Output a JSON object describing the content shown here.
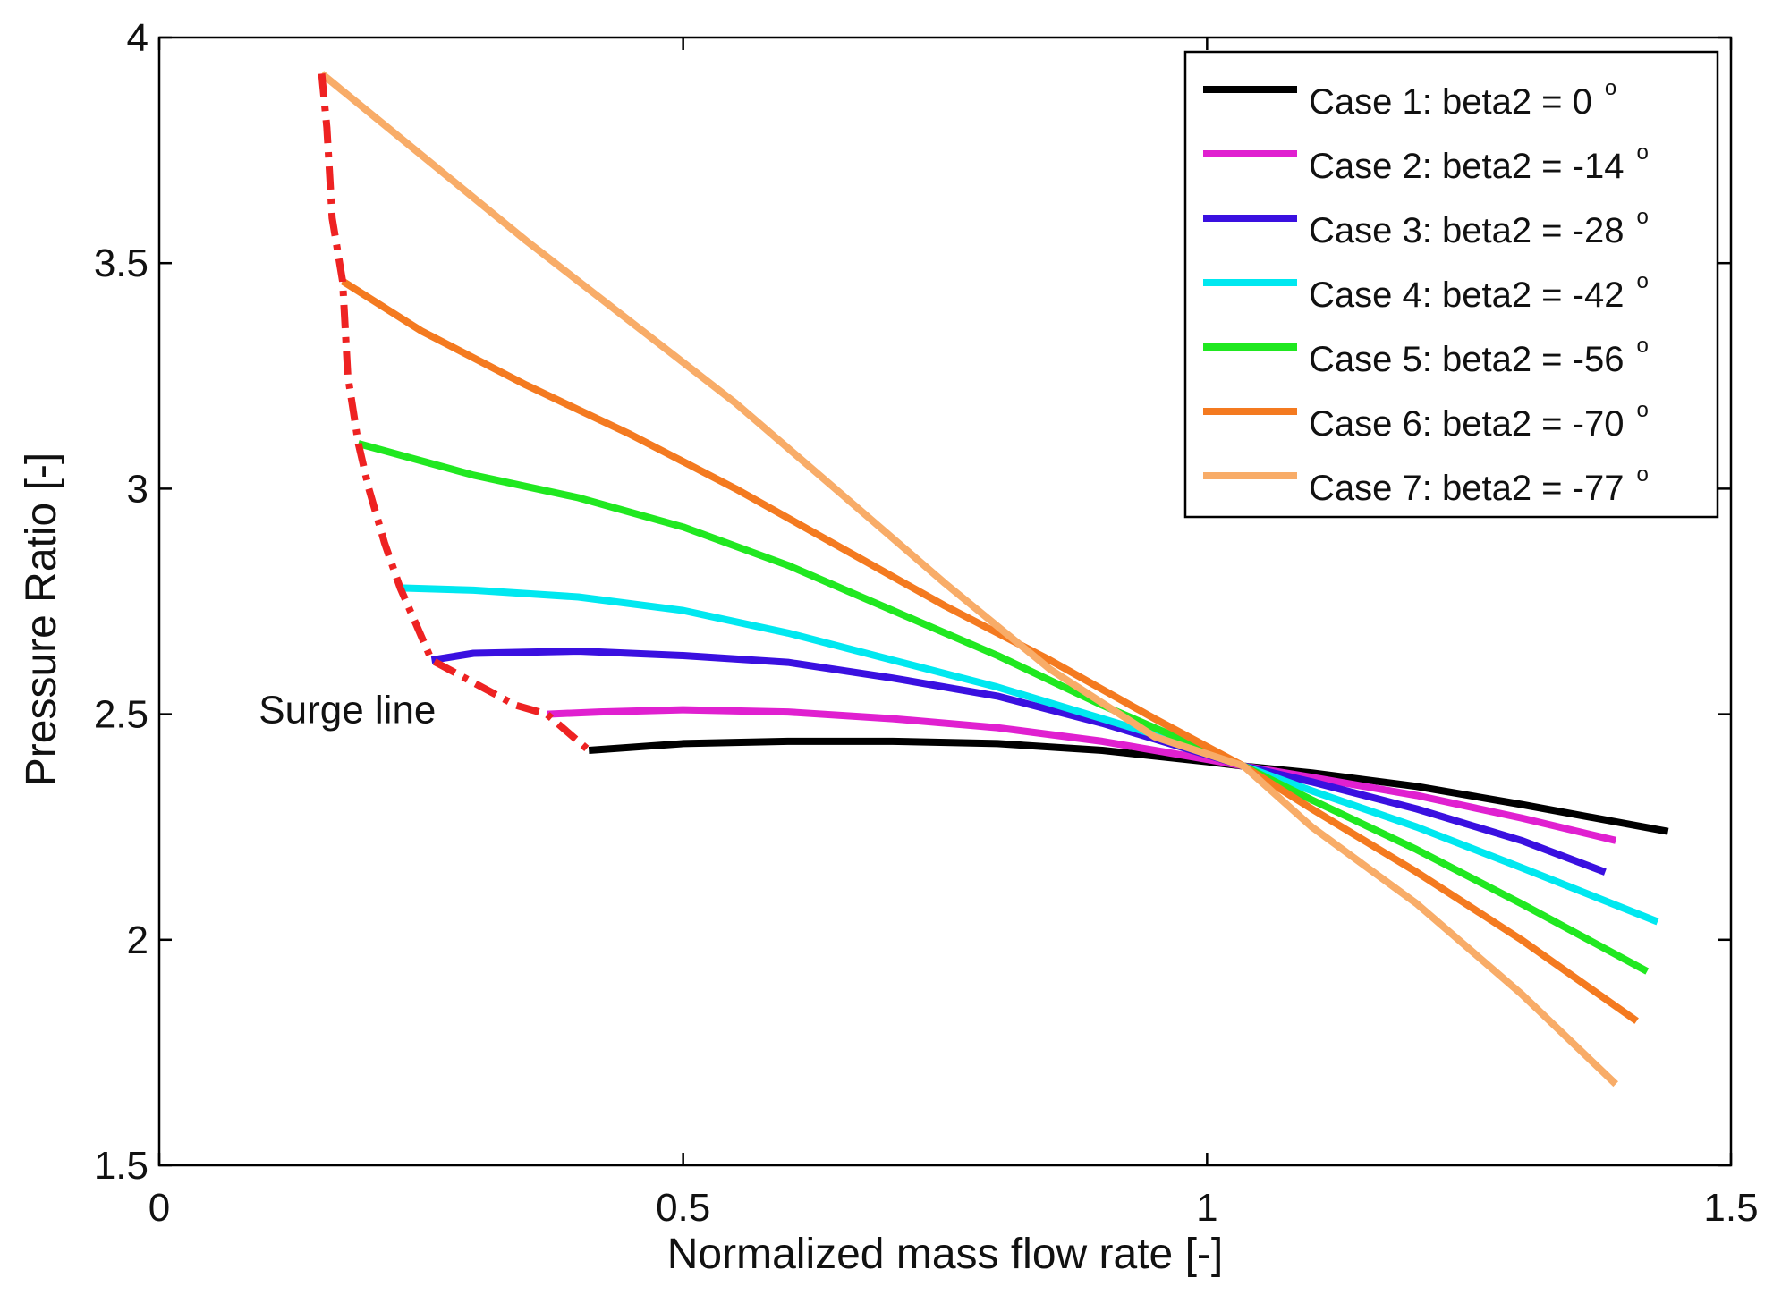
{
  "chart_data": {
    "type": "line",
    "title": "",
    "xlabel": "Normalized mass flow rate [-]",
    "ylabel": "Pressure Ratio [-]",
    "xlim": [
      0,
      1.5
    ],
    "ylim": [
      1.5,
      4
    ],
    "xticks": [
      0,
      0.5,
      1,
      1.5
    ],
    "xtick_labels": [
      "0",
      "0.5",
      "1",
      "1.5"
    ],
    "yticks": [
      1.5,
      2,
      2.5,
      3,
      3.5,
      4
    ],
    "ytick_labels": [
      "1.5",
      "2",
      "2.5",
      "3",
      "3.5",
      "4"
    ],
    "grid": false,
    "legend_position": "top-right",
    "degree_symbol": "o",
    "series": [
      {
        "name": "Case 1: beta2 = 0",
        "color": "#000000",
        "points": [
          [
            0.41,
            2.42
          ],
          [
            0.5,
            2.435
          ],
          [
            0.6,
            2.44
          ],
          [
            0.7,
            2.44
          ],
          [
            0.8,
            2.435
          ],
          [
            0.9,
            2.42
          ],
          [
            1.0,
            2.395
          ],
          [
            1.035,
            2.385
          ],
          [
            1.1,
            2.37
          ],
          [
            1.2,
            2.34
          ],
          [
            1.3,
            2.3
          ],
          [
            1.44,
            2.24
          ]
        ]
      },
      {
        "name": "Case 2: beta2 = -14",
        "color": "#e020d0",
        "points": [
          [
            0.37,
            2.5
          ],
          [
            0.42,
            2.505
          ],
          [
            0.5,
            2.51
          ],
          [
            0.6,
            2.505
          ],
          [
            0.7,
            2.49
          ],
          [
            0.8,
            2.47
          ],
          [
            0.9,
            2.44
          ],
          [
            1.0,
            2.4
          ],
          [
            1.035,
            2.385
          ],
          [
            1.1,
            2.36
          ],
          [
            1.2,
            2.32
          ],
          [
            1.3,
            2.27
          ],
          [
            1.39,
            2.22
          ]
        ]
      },
      {
        "name": "Case 3: beta2 = -28",
        "color": "#3a10e0",
        "points": [
          [
            0.26,
            2.62
          ],
          [
            0.3,
            2.635
          ],
          [
            0.4,
            2.64
          ],
          [
            0.5,
            2.63
          ],
          [
            0.6,
            2.615
          ],
          [
            0.7,
            2.58
          ],
          [
            0.8,
            2.54
          ],
          [
            0.9,
            2.48
          ],
          [
            1.0,
            2.41
          ],
          [
            1.035,
            2.385
          ],
          [
            1.1,
            2.35
          ],
          [
            1.2,
            2.29
          ],
          [
            1.3,
            2.22
          ],
          [
            1.38,
            2.15
          ]
        ]
      },
      {
        "name": "Case 4: beta2 = -42",
        "color": "#00e8f0",
        "points": [
          [
            0.23,
            2.78
          ],
          [
            0.3,
            2.775
          ],
          [
            0.4,
            2.76
          ],
          [
            0.5,
            2.73
          ],
          [
            0.6,
            2.68
          ],
          [
            0.7,
            2.62
          ],
          [
            0.8,
            2.56
          ],
          [
            0.9,
            2.49
          ],
          [
            1.0,
            2.42
          ],
          [
            1.035,
            2.385
          ],
          [
            1.1,
            2.33
          ],
          [
            1.2,
            2.25
          ],
          [
            1.3,
            2.16
          ],
          [
            1.43,
            2.04
          ]
        ]
      },
      {
        "name": "Case 5: beta2 = -56",
        "color": "#20e820",
        "points": [
          [
            0.19,
            3.1
          ],
          [
            0.3,
            3.03
          ],
          [
            0.4,
            2.98
          ],
          [
            0.5,
            2.915
          ],
          [
            0.6,
            2.83
          ],
          [
            0.7,
            2.73
          ],
          [
            0.8,
            2.63
          ],
          [
            0.9,
            2.52
          ],
          [
            1.0,
            2.42
          ],
          [
            1.035,
            2.385
          ],
          [
            1.1,
            2.31
          ],
          [
            1.2,
            2.2
          ],
          [
            1.3,
            2.08
          ],
          [
            1.42,
            1.93
          ]
        ]
      },
      {
        "name": "Case 6: beta2 = -70",
        "color": "#f47a20",
        "points": [
          [
            0.175,
            3.46
          ],
          [
            0.25,
            3.35
          ],
          [
            0.35,
            3.23
          ],
          [
            0.45,
            3.12
          ],
          [
            0.55,
            3.0
          ],
          [
            0.65,
            2.87
          ],
          [
            0.75,
            2.74
          ],
          [
            0.85,
            2.62
          ],
          [
            0.95,
            2.49
          ],
          [
            1.035,
            2.385
          ],
          [
            1.1,
            2.29
          ],
          [
            1.2,
            2.15
          ],
          [
            1.3,
            2.0
          ],
          [
            1.41,
            1.82
          ]
        ]
      },
      {
        "name": "Case 7: beta2 = -77",
        "color": "#f8ac68",
        "points": [
          [
            0.155,
            3.92
          ],
          [
            0.25,
            3.74
          ],
          [
            0.35,
            3.55
          ],
          [
            0.45,
            3.37
          ],
          [
            0.55,
            3.19
          ],
          [
            0.65,
            2.99
          ],
          [
            0.75,
            2.79
          ],
          [
            0.85,
            2.6
          ],
          [
            0.95,
            2.45
          ],
          [
            1.035,
            2.385
          ],
          [
            1.1,
            2.25
          ],
          [
            1.2,
            2.08
          ],
          [
            1.3,
            1.88
          ],
          [
            1.39,
            1.68
          ]
        ]
      }
    ],
    "surge_line": {
      "label": "Surge line",
      "color": "#ee2222",
      "points": [
        [
          0.155,
          3.92
        ],
        [
          0.16,
          3.8
        ],
        [
          0.165,
          3.6
        ],
        [
          0.175,
          3.46
        ],
        [
          0.18,
          3.25
        ],
        [
          0.19,
          3.1
        ],
        [
          0.2,
          3.0
        ],
        [
          0.215,
          2.88
        ],
        [
          0.23,
          2.78
        ],
        [
          0.245,
          2.7
        ],
        [
          0.26,
          2.62
        ],
        [
          0.3,
          2.57
        ],
        [
          0.34,
          2.52
        ],
        [
          0.37,
          2.5
        ],
        [
          0.41,
          2.42
        ]
      ]
    }
  }
}
